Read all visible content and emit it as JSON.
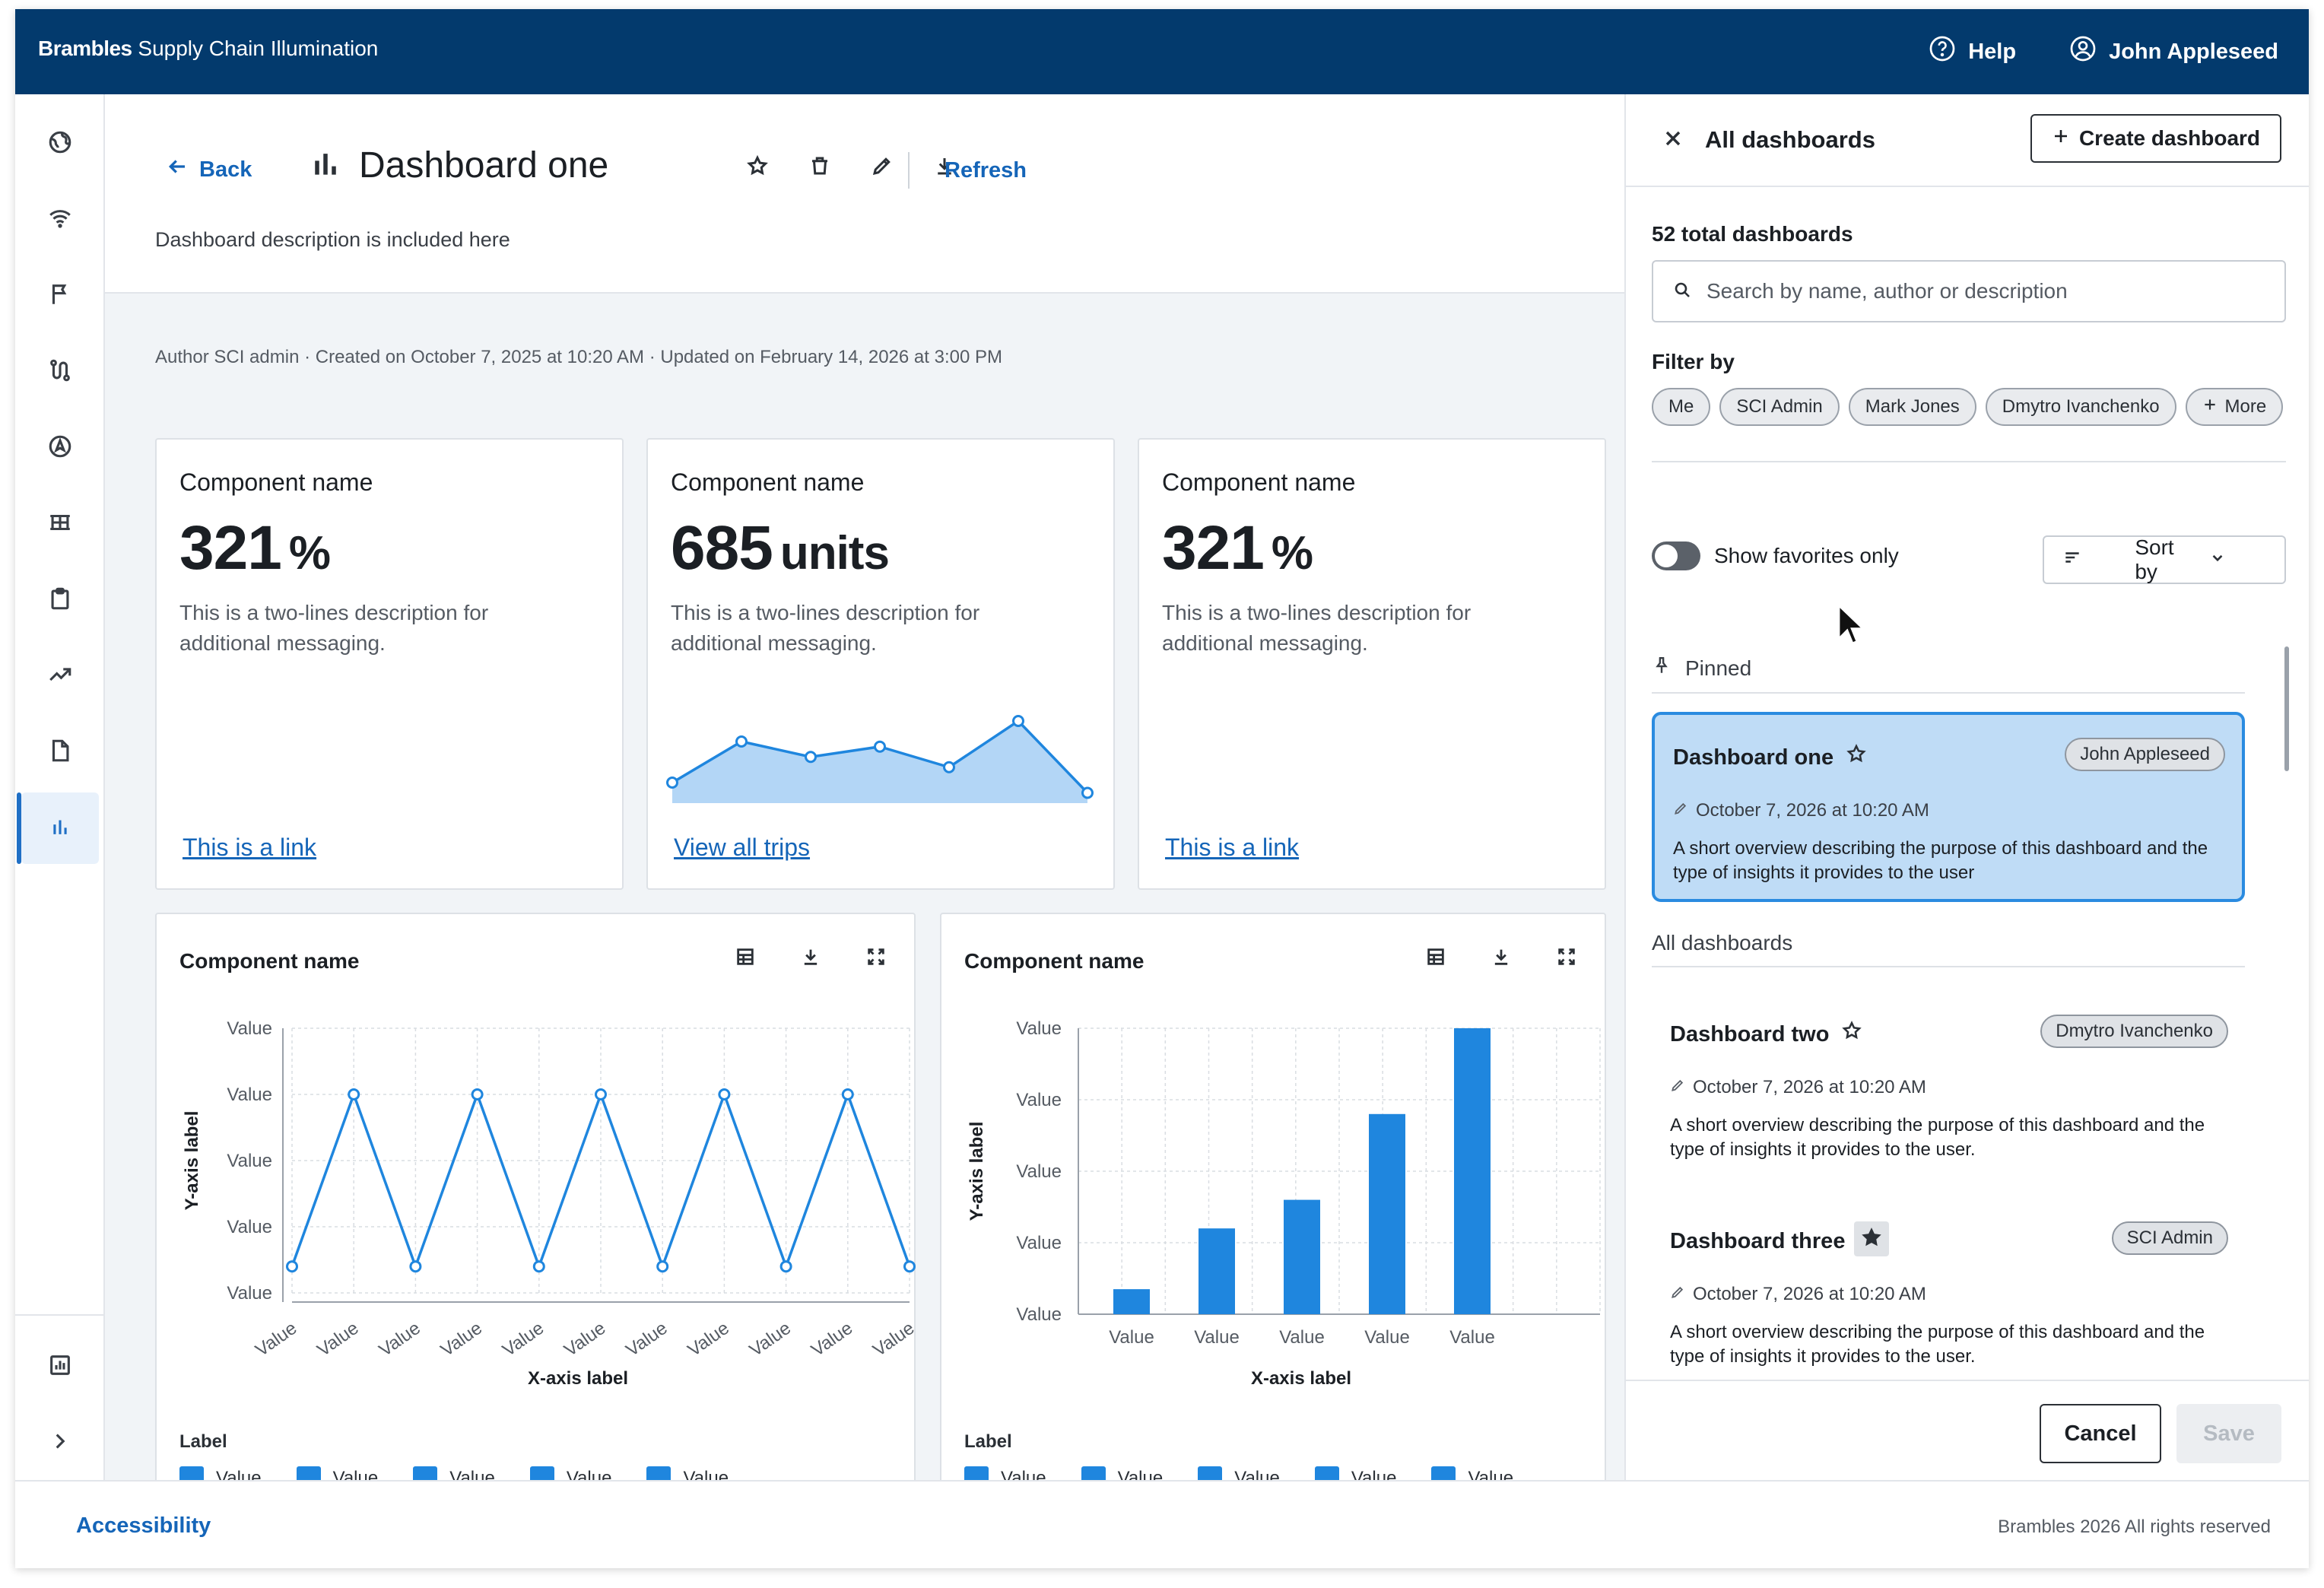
{
  "header": {
    "brand_bold": "Brambles",
    "brand_rest": " Supply Chain Illumination",
    "help_label": "Help",
    "user_label": "John Appleseed"
  },
  "nav": {
    "icons": [
      "globe-icon",
      "wifi-icon",
      "flag-icon",
      "route-icon",
      "compass-icon",
      "pallet-icon",
      "clipboard-icon",
      "trend-icon",
      "document-icon",
      "bar-chart-icon"
    ],
    "active_index": 9,
    "bottom_icons": [
      "report-icon",
      "chevron-right-icon"
    ]
  },
  "dashboard": {
    "back_label": "Back",
    "title": "Dashboard one",
    "refresh_label": "Refresh",
    "description": "Dashboard description is included here",
    "meta": "Author SCI admin · Created on October 7, 2025 at 10:20 AM · Updated on February 14, 2026 at 3:00 PM"
  },
  "kpis": [
    {
      "name": "Component name",
      "value": "321",
      "unit": "%",
      "desc": "This is a two-lines description for additional messaging.",
      "link": "This is a link"
    },
    {
      "name": "Component name",
      "value": "685",
      "unit": "units",
      "desc": "This is a two-lines description for additional messaging.",
      "link": "View all trips"
    },
    {
      "name": "Component name",
      "value": "321",
      "unit": "%",
      "desc": "This is a two-lines description for additional messaging.",
      "link": "This is a link"
    }
  ],
  "sparkline": {
    "values": [
      2,
      6,
      4.5,
      5.5,
      3.5,
      8,
      1
    ]
  },
  "charts": [
    {
      "title": "Component name",
      "legend_label": "Label",
      "legend_items": [
        "Value",
        "Value",
        "Value",
        "Value",
        "Value"
      ]
    },
    {
      "title": "Component name",
      "legend_label": "Label",
      "legend_items": [
        "Value",
        "Value",
        "Value",
        "Value",
        "Value"
      ]
    }
  ],
  "chart_data": [
    {
      "type": "line",
      "xlabel": "X-axis label",
      "ylabel": "Y-axis label",
      "y_tick_labels": [
        "Value",
        "Value",
        "Value",
        "Value",
        "Value"
      ],
      "x_tick_labels": [
        "Value",
        "Value",
        "Value",
        "Value",
        "Value",
        "Value",
        "Value",
        "Value",
        "Value",
        "Value",
        "Value"
      ],
      "ylim": [
        0,
        5
      ],
      "grid": true,
      "series": [
        {
          "values": [
            0.5,
            3.75,
            0.5,
            3.75,
            0.5,
            3.75,
            0.5,
            3.75,
            0.5,
            3.75,
            0.5
          ]
        }
      ]
    },
    {
      "type": "bar",
      "xlabel": "X-axis label",
      "ylabel": "Y-axis label",
      "y_tick_labels": [
        "Value",
        "Value",
        "Value",
        "Value",
        "Value"
      ],
      "categories": [
        "Value",
        "Value",
        "Value",
        "Value",
        "Value"
      ],
      "ylim": [
        0,
        4
      ],
      "grid": true,
      "values": [
        0.35,
        1.2,
        1.6,
        2.8,
        4.0
      ]
    }
  ],
  "panel": {
    "title": "All dashboards",
    "create_label": "Create dashboard",
    "total": "52 total dashboards",
    "search_placeholder": "Search by name, author or description",
    "filter_label": "Filter by",
    "chips": [
      "Me",
      "SCI Admin",
      "Mark Jones",
      "Dmytro Ivanchenko"
    ],
    "more_chip": "More",
    "favorites_label": "Show favorites only",
    "sort_label": "Sort by",
    "pinned_label": "Pinned",
    "all_label": "All dashboards",
    "cancel_label": "Cancel",
    "save_label": "Save",
    "pinned": {
      "title": "Dashboard one",
      "author": "John Appleseed",
      "date": "October 7, 2026 at 10:20 AM",
      "desc": "A short overview describing the purpose of this dashboard and the type of insights it provides to the user",
      "favorite": false
    },
    "dashboards": [
      {
        "title": "Dashboard two",
        "author": "Dmytro Ivanchenko",
        "date": "October 7, 2026 at 10:20 AM",
        "desc": "A short overview describing the purpose of this dashboard and the type of insights it provides to the user.",
        "favorite": false
      },
      {
        "title": "Dashboard three",
        "author": "SCI Admin",
        "date": "October 7, 2026 at 10:20 AM",
        "desc": "A short overview describing the purpose of this dashboard and the type of insights it provides to the user.",
        "favorite": true
      }
    ]
  },
  "footer": {
    "accessibility_label": "Accessibility",
    "copyright": "Brambles 2026 All rights reserved"
  },
  "colors": {
    "brand": "#033a6d",
    "accent": "#1f86de",
    "link": "#1565b8"
  }
}
